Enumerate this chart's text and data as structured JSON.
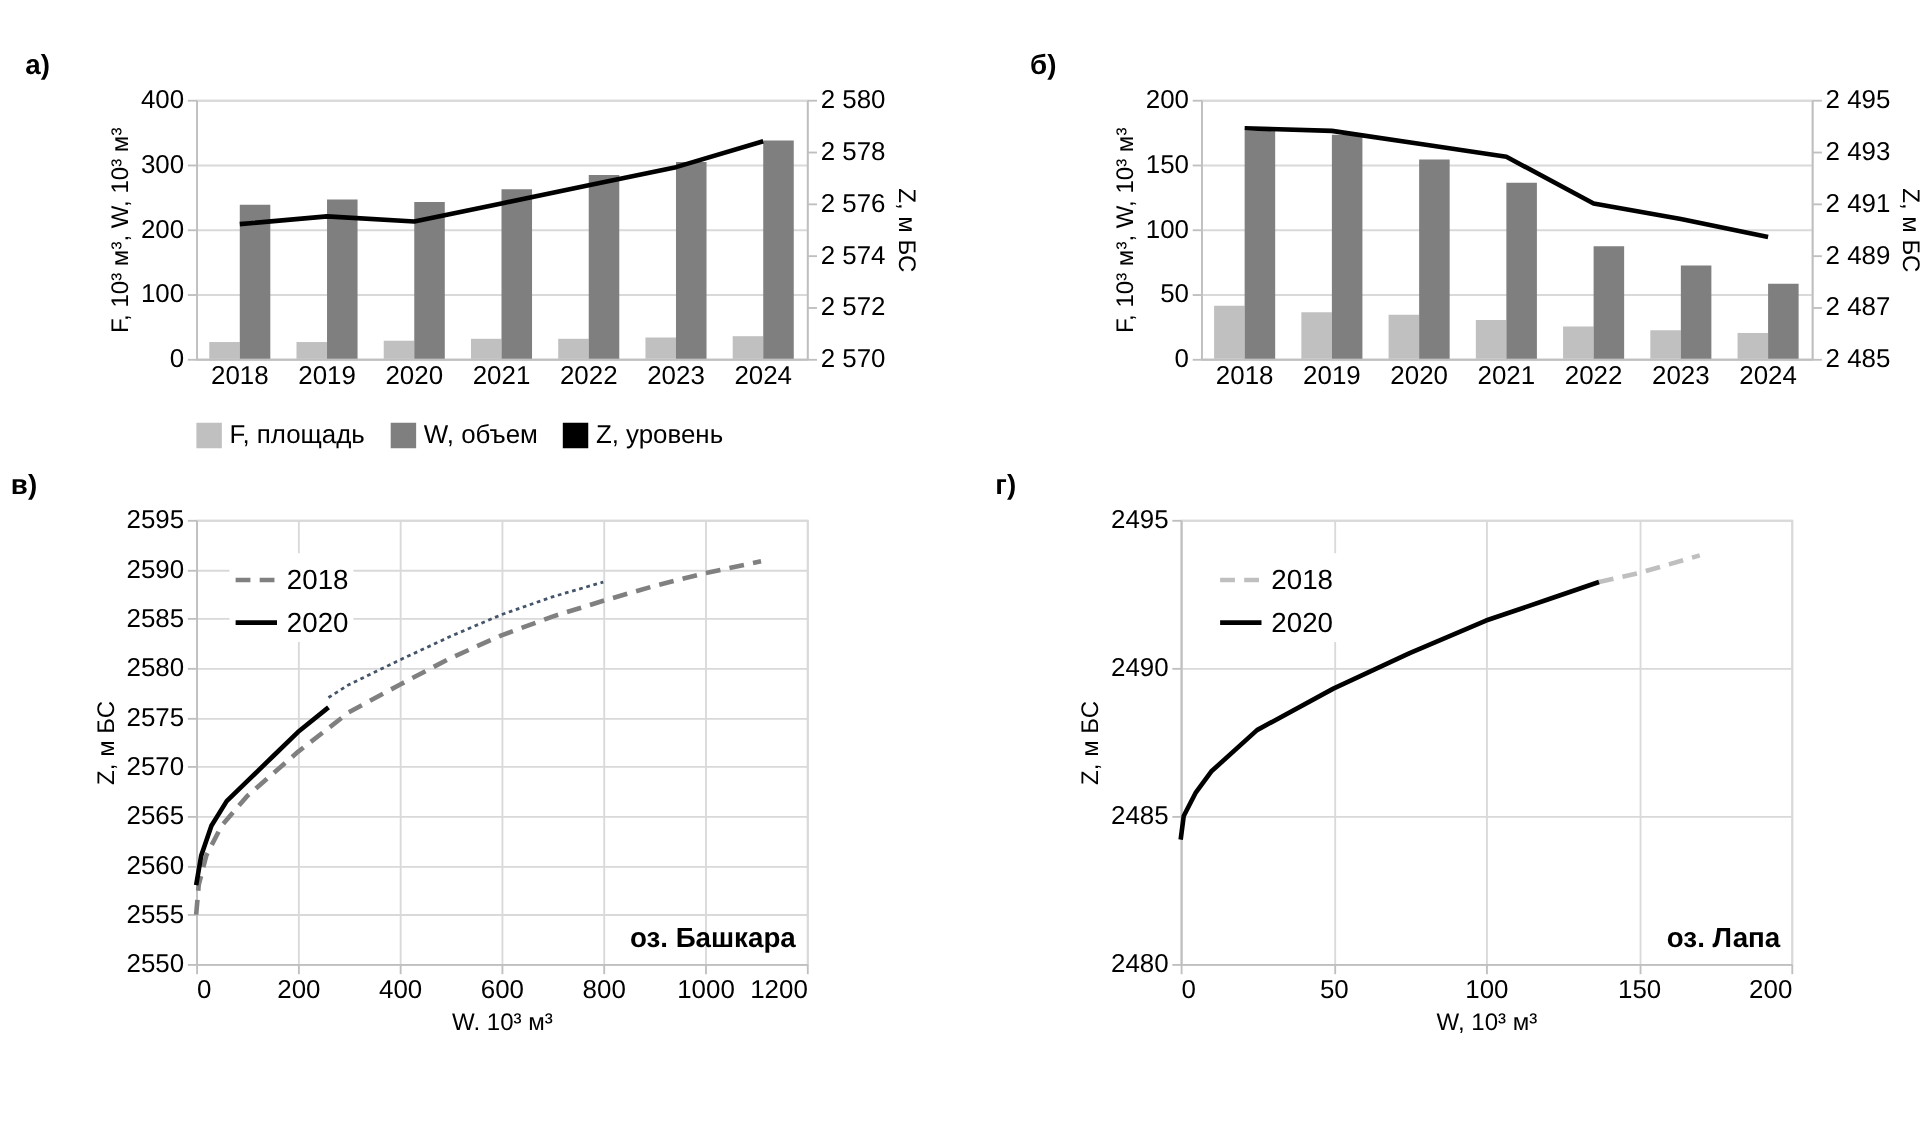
{
  "chart_data": [
    {
      "type": "bar",
      "title": "а)",
      "ylabel": "F, 10³ м³, W, 10³ м³",
      "y2label": "Z, м БС",
      "categories": [
        "2018",
        "2019",
        "2020",
        "2021",
        "2022",
        "2023",
        "2024"
      ],
      "series": [
        {
          "name": "F, площадь",
          "color": "#c0c0c0",
          "values": [
            26,
            26,
            28,
            31,
            31,
            33,
            35
          ]
        },
        {
          "name": "W, объем",
          "color": "#7f7f7f",
          "values": [
            238,
            246,
            242,
            262,
            284,
            304,
            337
          ]
        },
        {
          "name": "Z, уровень",
          "type": "line",
          "axis": "y2",
          "color": "#000000",
          "values": [
            2575.2,
            2575.5,
            2575.3,
            2576.0,
            2576.7,
            2577.4,
            2578.4
          ]
        }
      ],
      "ylim": [
        0,
        400
      ],
      "yticks": [
        0,
        100,
        200,
        300,
        400
      ],
      "y2lim": [
        2570,
        2580
      ],
      "y2ticks": [
        {
          "value": 2570,
          "label": "2 570"
        },
        {
          "value": 2572,
          "label": "2 572"
        },
        {
          "value": 2574,
          "label": "2 574"
        },
        {
          "value": 2576,
          "label": "2 576"
        },
        {
          "value": 2578,
          "label": "2 578"
        },
        {
          "value": 2580,
          "label": "2 580"
        }
      ],
      "grid": "y",
      "legend": "bottom"
    },
    {
      "type": "bar",
      "title": "б)",
      "ylabel": "F, 10³ м³, W, 10³ м³",
      "y2label": "Z, м БС",
      "categories": [
        "2018",
        "2019",
        "2020",
        "2021",
        "2022",
        "2023",
        "2024"
      ],
      "series": [
        {
          "color": "#c0c0c0",
          "values": [
            41,
            36,
            34,
            30,
            25,
            22,
            20
          ]
        },
        {
          "color": "#7f7f7f",
          "values": [
            176,
            173,
            154,
            136,
            87,
            72,
            58
          ]
        },
        {
          "type": "line",
          "axis": "y2",
          "color": "#000000",
          "values": [
            2493.9,
            2493.8,
            2493.3,
            2492.8,
            2491.0,
            2490.4,
            2489.7
          ]
        }
      ],
      "ylim": [
        0,
        200
      ],
      "yticks": [
        0,
        50,
        100,
        150,
        200
      ],
      "y2lim": [
        2485,
        2495
      ],
      "y2ticks": [
        {
          "value": 2485,
          "label": "2 485"
        },
        {
          "value": 2487,
          "label": "2 487"
        },
        {
          "value": 2489,
          "label": "2 489"
        },
        {
          "value": 2491,
          "label": "2 491"
        },
        {
          "value": 2493,
          "label": "2 493"
        },
        {
          "value": 2495,
          "label": "2 495"
        }
      ],
      "grid": "y"
    },
    {
      "type": "line",
      "title": "в)",
      "xlabel": "W. 10³ м³",
      "ylabel": "Z, м БС",
      "annotations": [
        "оз. Башкара"
      ],
      "series": [
        {
          "name": "2018",
          "color": "#808080",
          "line_style": "dashed",
          "x": [
            0,
            5,
            20,
            50,
            100,
            200,
            300,
            400,
            500,
            600,
            700,
            800,
            900,
            1000,
            1110
          ],
          "values": [
            2555,
            2558,
            2561,
            2564,
            2567,
            2571.5,
            2575.5,
            2578.3,
            2581,
            2583.3,
            2585.2,
            2586.8,
            2588.3,
            2589.6,
            2590.8
          ]
        },
        {
          "name": "2020",
          "color": "#000000",
          "line_style": "solid",
          "x": [
            0,
            10,
            30,
            60,
            100,
            150,
            200,
            260
          ],
          "values": [
            2558,
            2561,
            2564,
            2566.5,
            2568.5,
            2571,
            2573.5,
            2576
          ]
        },
        {
          "color": "#44546a",
          "line_style": "dotted",
          "x": [
            260,
            300,
            400,
            500,
            600,
            700,
            800
          ],
          "values": [
            2577,
            2578.3,
            2580.8,
            2583.2,
            2585.4,
            2587.2,
            2588.7
          ]
        }
      ],
      "xlim": [
        0,
        1200
      ],
      "xticks": [
        0,
        200,
        400,
        600,
        800,
        1000,
        1200
      ],
      "ylim": [
        2550,
        2595
      ],
      "yticks": [
        2550,
        2555,
        2560,
        2565,
        2570,
        2575,
        2580,
        2585,
        2590,
        2595
      ],
      "grid": true,
      "legend": "top left"
    },
    {
      "type": "line",
      "title": "г)",
      "xlabel": "W, 10³ м³",
      "ylabel": "Z, м БС",
      "annotations": [
        "оз. Лапа"
      ],
      "series": [
        {
          "name": "2018",
          "color": "#bfbfbf",
          "line_style": "dashed",
          "x": [
            137,
            150,
            170
          ],
          "values": [
            2492.9,
            2493.2,
            2493.8
          ]
        },
        {
          "name": "2020",
          "color": "#000000",
          "line_style": "solid",
          "x": [
            0,
            1,
            5,
            10,
            25,
            50,
            75,
            100,
            120,
            137
          ],
          "values": [
            2484.2,
            2485,
            2485.8,
            2486.5,
            2487.9,
            2489.3,
            2490.5,
            2491.6,
            2492.3,
            2492.9
          ]
        }
      ],
      "xlim": [
        0,
        200
      ],
      "xticks": [
        0,
        50,
        100,
        150,
        200
      ],
      "ylim": [
        2480,
        2495
      ],
      "yticks": [
        2480,
        2485,
        2490,
        2495
      ],
      "grid": true,
      "legend": "top left"
    }
  ]
}
